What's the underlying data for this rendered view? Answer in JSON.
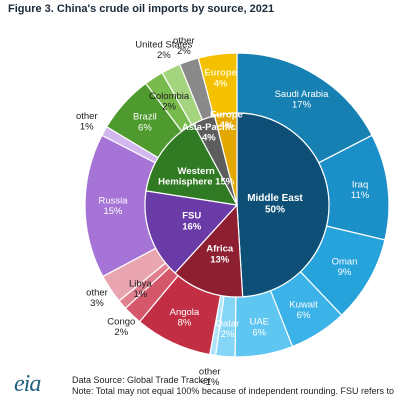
{
  "figure_title": "Figure 3. China's crude oil imports by source, 2021",
  "footer": {
    "logo_text": "eia",
    "source": "Data Source: Global Trade Tracker",
    "note": "Note: Total may not equal 100% because of independent rounding. FSU refers to"
  },
  "chart_data": {
    "type": "pie",
    "title": "Figure 3. China's crude oil imports by source, 2021",
    "inner_ring": [
      {
        "name": "Middle East",
        "label": "50%",
        "value": 50,
        "color": "#0e4f78"
      },
      {
        "name": "Africa",
        "label": "13%",
        "value": 13,
        "color": "#8e1f30"
      },
      {
        "name": "FSU",
        "label": "16%",
        "value": 16,
        "color": "#6a3aa6"
      },
      {
        "name": "Western Hemisphere",
        "label": "15%",
        "value": 15,
        "color": "#2f7a22"
      },
      {
        "name": "Asia-Pacific",
        "label": "4%",
        "value": 4,
        "color": "#5d5d5d"
      },
      {
        "name": "Europe",
        "label": "4%",
        "value": 4,
        "color": "#e3a800"
      }
    ],
    "outer_ring": [
      {
        "name": "Saudi Arabia",
        "label": "17%",
        "value": 17,
        "color": "#1680b3"
      },
      {
        "name": "Iraq",
        "label": "11%",
        "value": 11,
        "color": "#1a8fc8"
      },
      {
        "name": "Oman",
        "label": "9%",
        "value": 9,
        "color": "#27a3dc"
      },
      {
        "name": "Kuwait",
        "label": "6%",
        "value": 6,
        "color": "#3cb3e8"
      },
      {
        "name": "UAE",
        "label": "6%",
        "value": 6,
        "color": "#5ec6f1"
      },
      {
        "name": "Qatar",
        "label": "2%",
        "value": 2,
        "color": "#84d5f6"
      },
      {
        "name": "other",
        "label": "<1%",
        "value": 0.6,
        "color": "#aee4fa"
      },
      {
        "name": "Angola",
        "label": "8%",
        "value": 8,
        "color": "#c22e44"
      },
      {
        "name": "Congo",
        "label": "2%",
        "value": 2,
        "color": "#d5586a"
      },
      {
        "name": "Libya",
        "label": "1%",
        "value": 1,
        "color": "#e07f8d"
      },
      {
        "name": "other",
        "label": "3%",
        "value": 3,
        "color": "#eaa6b0"
      },
      {
        "name": "Russia",
        "label": "15%",
        "value": 15,
        "color": "#a574d6"
      },
      {
        "name": "other",
        "label": "1%",
        "value": 1,
        "color": "#d2b6ee"
      },
      {
        "name": "Brazil",
        "label": "6%",
        "value": 6,
        "color": "#4e9a2e"
      },
      {
        "name": "Colombia",
        "label": "2%",
        "value": 2,
        "color": "#78bb4c"
      },
      {
        "name": "United States",
        "label": "2%",
        "value": 2,
        "color": "#a5d47f"
      },
      {
        "name": "other",
        "label": "2%",
        "value": 2,
        "color": "#8a8a8a"
      },
      {
        "name": "Europe",
        "label": "4%",
        "value": 4,
        "color": "#f5c000"
      }
    ]
  }
}
